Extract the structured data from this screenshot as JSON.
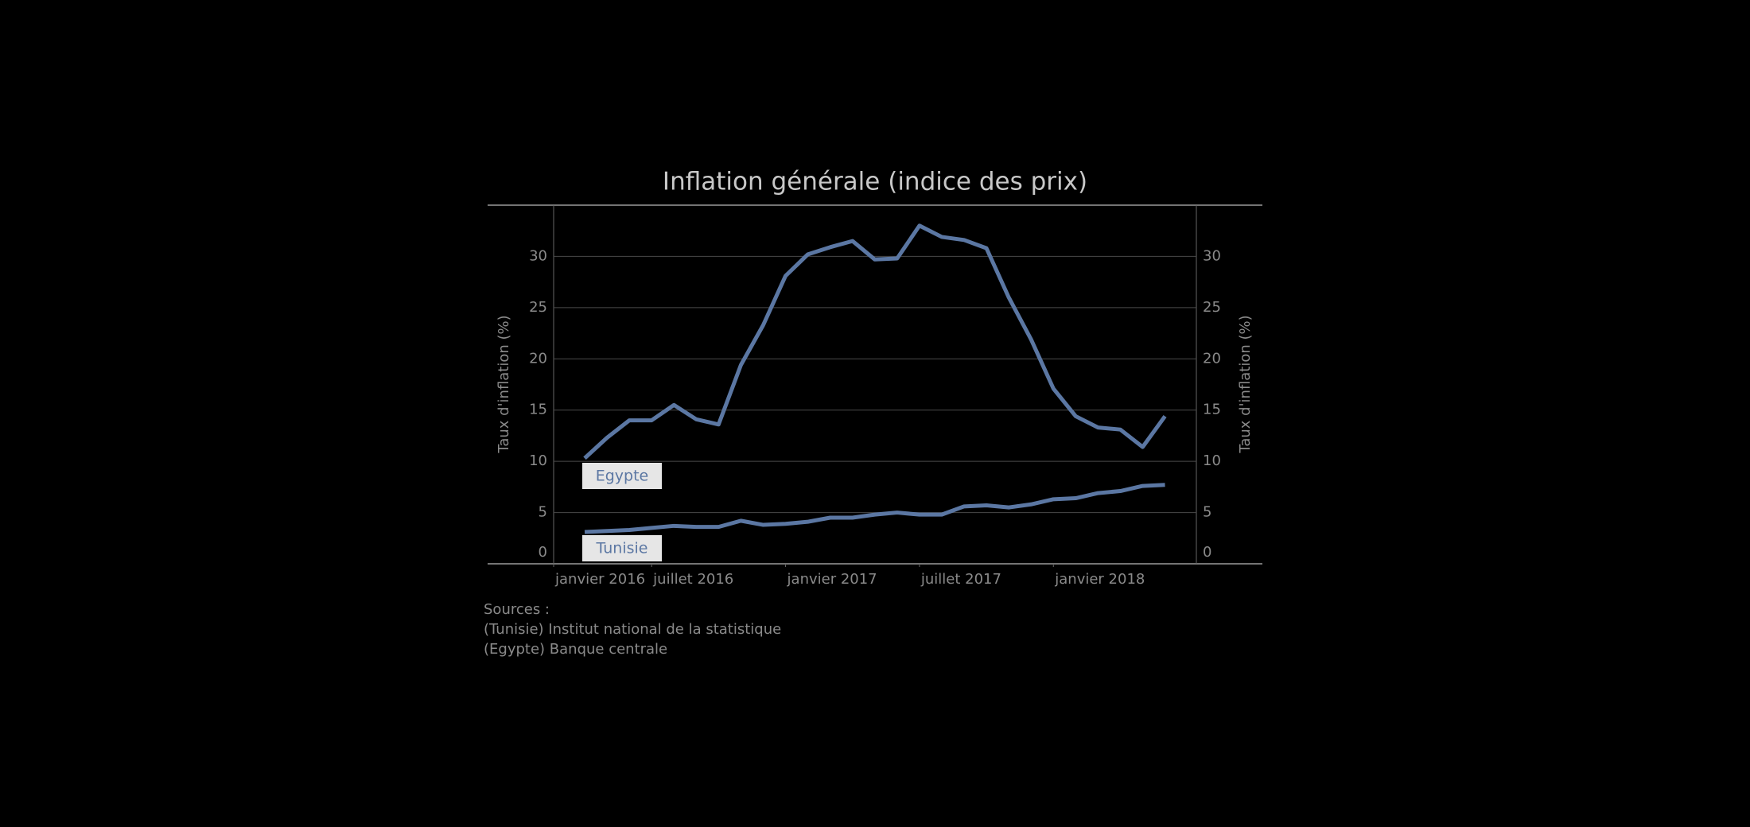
{
  "chart_data": {
    "type": "line",
    "title": "Inflation générale (indice des prix)",
    "y_label": "Taux d'inflation (%)",
    "y2_label": "Taux d'inflation (%)",
    "x": [
      "2016-04",
      "2016-05",
      "2016-06",
      "2016-07",
      "2016-08",
      "2016-09",
      "2016-10",
      "2016-11",
      "2016-12",
      "2017-01",
      "2017-02",
      "2017-03",
      "2017-04",
      "2017-05",
      "2017-06",
      "2017-07",
      "2017-08",
      "2017-09",
      "2017-10",
      "2017-11",
      "2017-12",
      "2018-01",
      "2018-02",
      "2018-03",
      "2018-04",
      "2018-05",
      "2018-06"
    ],
    "series": [
      {
        "name": "Egypte",
        "color": "#5b77a3",
        "values": [
          10.3,
          12.3,
          14.0,
          14.0,
          15.5,
          14.1,
          13.6,
          19.4,
          23.3,
          28.1,
          30.2,
          30.9,
          31.5,
          29.7,
          29.8,
          33.0,
          31.9,
          31.6,
          30.8,
          26.0,
          21.9,
          17.1,
          14.4,
          13.3,
          13.1,
          11.4,
          14.4
        ]
      },
      {
        "name": "Tunisie",
        "color": "#5b77a3",
        "values": [
          3.1,
          3.2,
          3.3,
          3.5,
          3.7,
          3.6,
          3.6,
          4.2,
          3.8,
          3.9,
          4.1,
          4.5,
          4.5,
          4.8,
          5.0,
          4.8,
          4.8,
          5.6,
          5.7,
          5.5,
          5.8,
          6.3,
          6.4,
          6.9,
          7.1,
          7.6,
          7.7
        ]
      }
    ],
    "xticks": [
      {
        "value": "2016-01",
        "label": "janvier 2016"
      },
      {
        "value": "2016-07",
        "label": "juillet 2016"
      },
      {
        "value": "2017-01",
        "label": "janvier 2017"
      },
      {
        "value": "2017-07",
        "label": "juillet 2017"
      },
      {
        "value": "2018-01",
        "label": "janvier 2018"
      }
    ],
    "ylim": [
      0,
      35
    ],
    "yticks": [
      0,
      5,
      10,
      15,
      20,
      25,
      30
    ],
    "y2lim": [
      0,
      35
    ],
    "y2ticks": [
      0,
      5,
      10,
      15,
      20,
      25,
      30
    ],
    "grid": true,
    "sources": [
      "Sources :",
      "(Tunisie) Institut national de la statistique",
      "(Egypte) Banque centrale"
    ]
  }
}
